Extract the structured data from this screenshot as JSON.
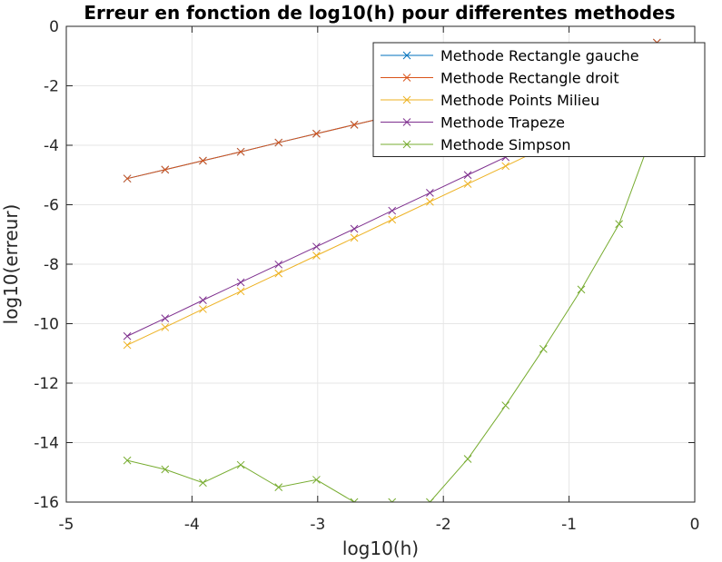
{
  "chart_data": {
    "type": "line",
    "title": "Erreur en fonction de log10(h) pour differentes methodes",
    "xlabel": "log10(h)",
    "ylabel": "log10(erreur)",
    "xlim": [
      -5,
      0
    ],
    "ylim": [
      -16,
      0
    ],
    "xticks": [
      -5,
      -4,
      -3,
      -2,
      -1,
      0
    ],
    "yticks": [
      -16,
      -14,
      -12,
      -10,
      -8,
      -6,
      -4,
      -2,
      0
    ],
    "xtick_labels": [
      "-5",
      "-4",
      "-3",
      "-2",
      "-1",
      "0"
    ],
    "ytick_labels": [
      "-16",
      "-14",
      "-12",
      "-10",
      "-8",
      "-6",
      "-4",
      "-2",
      "0"
    ],
    "grid": true,
    "legend_position": "top-right",
    "x": [
      -4.515,
      -4.214,
      -3.913,
      -3.612,
      -3.311,
      -3.01,
      -2.709,
      -2.408,
      -2.107,
      -1.806,
      -1.505,
      -1.204,
      -0.903,
      -0.602,
      -0.301
    ],
    "series": [
      {
        "name": "Methode Rectangle gauche",
        "color": "#0072BD",
        "values": [
          -5.12,
          -4.82,
          -4.52,
          -4.22,
          -3.91,
          -3.61,
          -3.31,
          -3.01,
          -2.71,
          -2.4,
          -2.1,
          -1.8,
          -1.49,
          -1.18,
          -0.55
        ]
      },
      {
        "name": "Methode Rectangle droit",
        "color": "#D95319",
        "values": [
          -5.12,
          -4.82,
          -4.52,
          -4.22,
          -3.91,
          -3.61,
          -3.31,
          -3.01,
          -2.71,
          -2.4,
          -2.1,
          -1.8,
          -1.49,
          -1.18,
          -0.55
        ]
      },
      {
        "name": "Methode Points Milieu",
        "color": "#EDB120",
        "values": [
          -10.72,
          -10.12,
          -9.51,
          -8.91,
          -8.31,
          -7.71,
          -7.11,
          -6.5,
          -5.9,
          -5.3,
          -4.7,
          -4.09,
          -3.49,
          -2.89,
          -2.3
        ]
      },
      {
        "name": "Methode Trapeze",
        "color": "#7E2F8E",
        "values": [
          -10.42,
          -9.82,
          -9.21,
          -8.61,
          -8.01,
          -7.41,
          -6.81,
          -6.2,
          -5.6,
          -5.0,
          -4.4,
          -3.79,
          -3.19,
          -2.58,
          -1.95
        ]
      },
      {
        "name": "Methode Simpson",
        "color": "#77AC30",
        "values": [
          -14.6,
          -14.9,
          -15.35,
          -14.75,
          -15.5,
          -15.25,
          -16.0,
          -16.0,
          -16.0,
          -14.55,
          -12.75,
          -10.85,
          -8.85,
          -6.65,
          -3.2
        ]
      }
    ]
  }
}
